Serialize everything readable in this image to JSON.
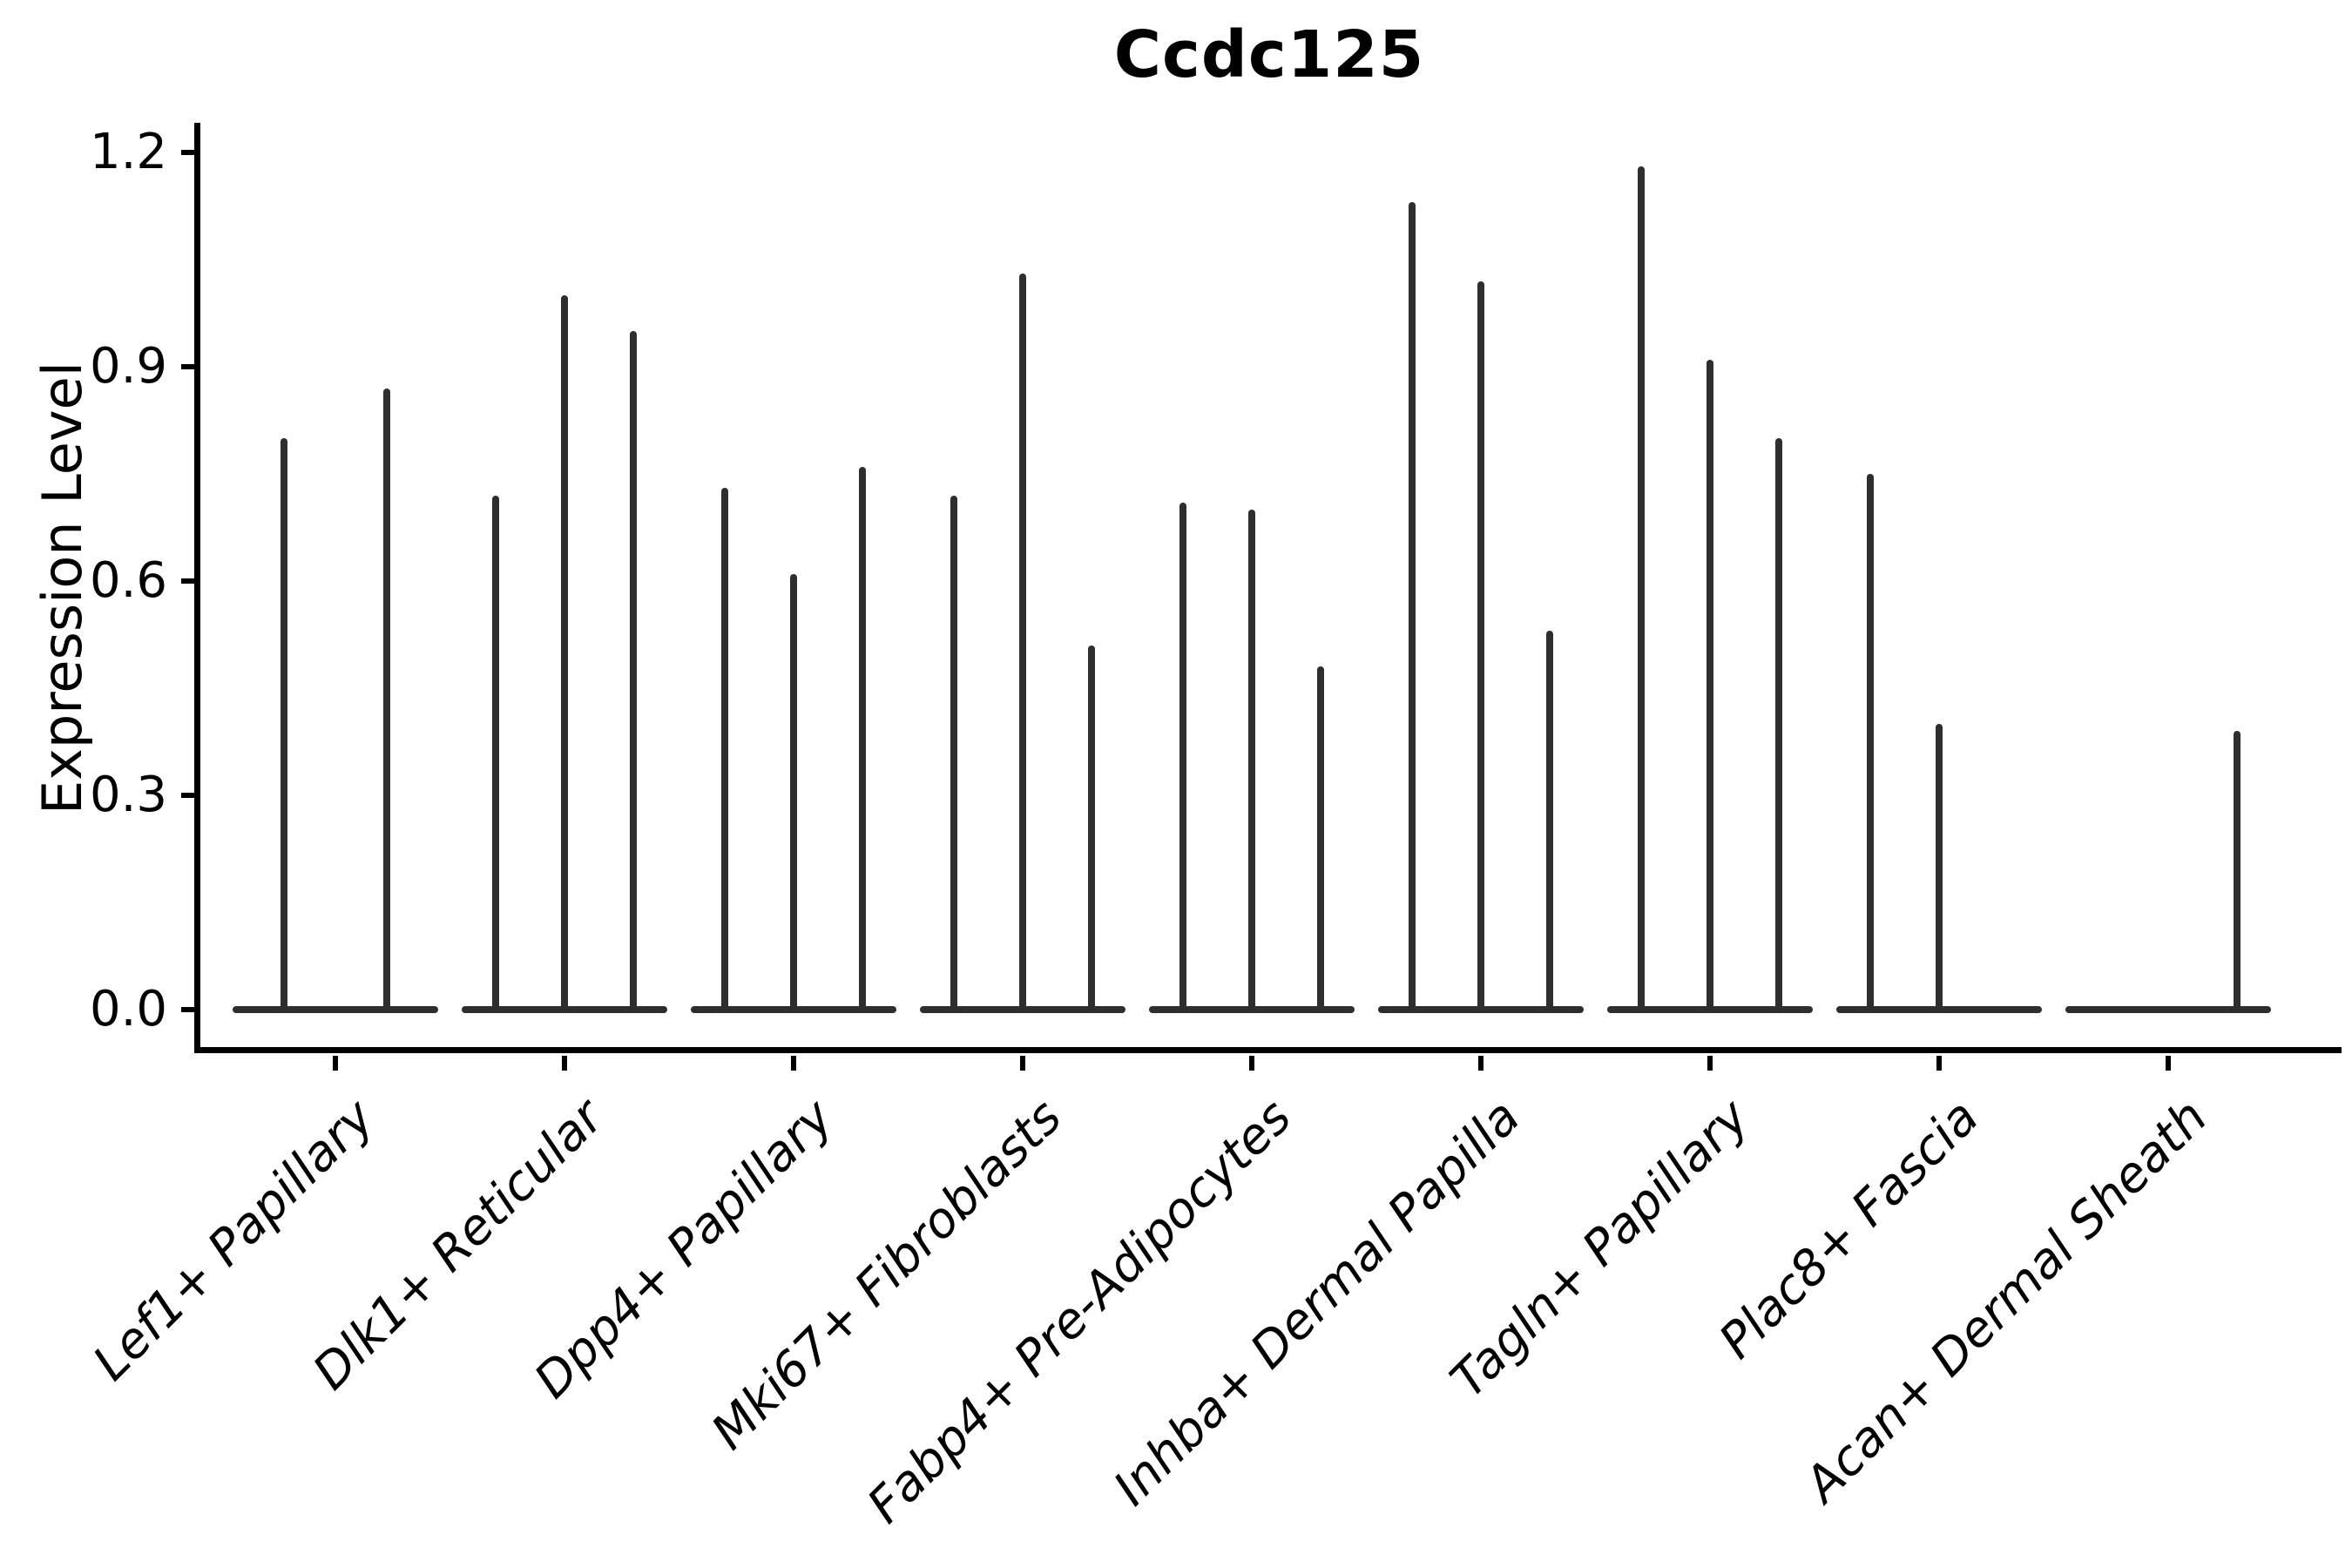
{
  "chart_data": {
    "type": "violin",
    "title": "Ccdc125",
    "xlabel": "",
    "ylabel": "Expression Level",
    "ylim": [
      0,
      1.26
    ],
    "grid": false,
    "legend": "none",
    "violin_color": "#2e2e2e",
    "axis_color": "#000000",
    "ytick_labels": [
      "0.0",
      "0.3",
      "0.6",
      "0.9",
      "1.2"
    ],
    "ytick_values": [
      0.0,
      0.3,
      0.6,
      0.9,
      1.2
    ],
    "categories": [
      "Lef1+ Papillary",
      "Dlk1+ Reticular",
      "Dpp4+ Papillary",
      "Mki67+ Fibroblasts",
      "Fabp4+ Pre-Adipocytes",
      "Inhba+ Dermal Papilla",
      "Tagln+ Papillary",
      "Plac8+ Fascia",
      "Acan+ Dermal Sheath"
    ],
    "groups": [
      {
        "category": "Lef1+ Papillary",
        "violins": [
          {
            "offset": -0.225,
            "peak": 0.8
          },
          {
            "offset": 0.225,
            "peak": 0.87
          }
        ]
      },
      {
        "category": "Dlk1+ Reticular",
        "violins": [
          {
            "offset": -0.3,
            "peak": 0.72
          },
          {
            "offset": 0,
            "peak": 1.0
          },
          {
            "offset": 0.3,
            "peak": 0.95
          }
        ]
      },
      {
        "category": "Dpp4+ Papillary",
        "violins": [
          {
            "offset": -0.3,
            "peak": 0.73
          },
          {
            "offset": 0,
            "peak": 0.61
          },
          {
            "offset": 0.3,
            "peak": 0.76
          }
        ]
      },
      {
        "category": "Mki67+ Fibroblasts",
        "violins": [
          {
            "offset": -0.3,
            "peak": 0.72
          },
          {
            "offset": 0,
            "peak": 1.03
          },
          {
            "offset": 0.3,
            "peak": 0.51
          }
        ]
      },
      {
        "category": "Fabp4+ Pre-Adipocytes",
        "violins": [
          {
            "offset": -0.3,
            "peak": 0.71
          },
          {
            "offset": 0,
            "peak": 0.7
          },
          {
            "offset": 0.3,
            "peak": 0.48
          }
        ]
      },
      {
        "category": "Inhba+ Dermal Papilla",
        "violins": [
          {
            "offset": -0.3,
            "peak": 1.13
          },
          {
            "offset": 0,
            "peak": 1.02
          },
          {
            "offset": 0.3,
            "peak": 0.53
          }
        ]
      },
      {
        "category": "Tagln+ Papillary",
        "violins": [
          {
            "offset": -0.3,
            "peak": 1.18
          },
          {
            "offset": 0,
            "peak": 0.91
          },
          {
            "offset": 0.3,
            "peak": 0.8
          }
        ]
      },
      {
        "category": "Plac8+ Fascia",
        "violins": [
          {
            "offset": -0.3,
            "peak": 0.75
          },
          {
            "offset": 0,
            "peak": 0.4
          }
        ]
      },
      {
        "category": "Acan+ Dermal Sheath",
        "violins": [
          {
            "offset": 0.3,
            "peak": 0.39
          }
        ]
      }
    ]
  }
}
